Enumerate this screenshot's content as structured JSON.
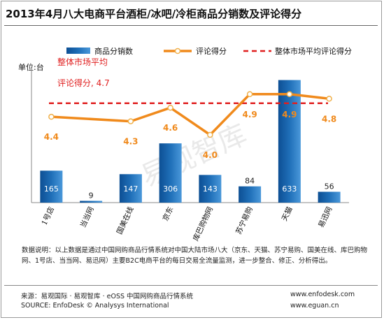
{
  "title": "2013年4月八大电商平台酒柜/冰吧/冷柜商品分销数及评论得分",
  "watermark": "易观智库",
  "unit_label": "单位:台",
  "colors": {
    "bar": "#1f6fb8",
    "line": "#f08a1c",
    "avg": "#e01f1f",
    "marker_fill": "#ffffff",
    "marker_stroke": "#f0b04a"
  },
  "chart_data": {
    "type": "bar",
    "categories": [
      "1号店",
      "当当网",
      "国美在线",
      "京东",
      "库巴购物网",
      "苏宁易购",
      "天猫",
      "易迅网"
    ],
    "series": [
      {
        "name": "商品分销数",
        "type": "bar",
        "values": [
          165,
          9,
          147,
          306,
          143,
          84,
          633,
          56
        ]
      },
      {
        "name": "评论得分",
        "type": "line",
        "values": [
          4.4,
          null,
          4.3,
          4.6,
          4.0,
          4.9,
          4.9,
          4.8
        ]
      },
      {
        "name": "整体市场平均评论得分",
        "type": "line",
        "values": [
          4.7,
          4.7,
          4.7,
          4.7,
          4.7,
          4.7,
          4.7,
          4.7
        ]
      }
    ],
    "score_labels": [
      "4.4",
      "",
      "4.3",
      "4.6",
      "4.0",
      "4.9",
      "4.9",
      "4.8"
    ],
    "bar_labels": [
      "165",
      "9",
      "147",
      "306",
      "143",
      "84",
      "633",
      "56"
    ],
    "ylim": [
      0,
      700
    ],
    "score_ylim": [
      2.5,
      5.5
    ],
    "average_score": 4.7,
    "annotation": {
      "line1": "整体市场平均",
      "line2": "评论得分, 4.7"
    },
    "legend": {
      "placement": "top",
      "items": [
        "商品分销数",
        "评论得分",
        "整体市场平均评论得分"
      ]
    },
    "grid": false
  },
  "note": "数据说明：以上数据是通过中国网购商品行情系统对中国大陆市场八大（京东、天猫、苏宁易购、国美在线、库巴购物网、1号店、当当网、易迅网）主要B2C电商平台的每日交易全流量监测，进一步整合、修正、分析得出。",
  "footer": {
    "source_cn": "来源：易观国际 · 易观智库 · eOSS 中国网购商品行情系统",
    "source_en": "SOURCE: EnfoDesk © Analysys International",
    "url1": "www.enfodesk.com",
    "url2": "www.eguan.cn"
  }
}
